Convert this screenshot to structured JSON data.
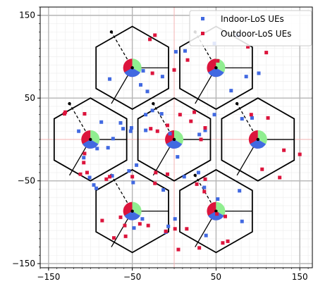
{
  "chart_data": {
    "type": "scatter",
    "title": "",
    "xlabel": "",
    "ylabel": "",
    "xlim": [
      -160,
      165
    ],
    "ylim": [
      -155,
      160
    ],
    "xticks": [
      -150,
      -50,
      50,
      150
    ],
    "yticks": [
      -150,
      -50,
      50,
      150
    ],
    "xtick_labels": [
      "−150",
      "−50",
      "50",
      "150"
    ],
    "ytick_labels": [
      "−150",
      "−50",
      "50",
      "150"
    ],
    "grid": "major + minor",
    "legend_position": "top-right",
    "hexagon_circumradius": 50,
    "cells": [
      {
        "center": [
          -50,
          86.6
        ]
      },
      {
        "center": [
          50,
          86.6
        ]
      },
      {
        "center": [
          -100,
          0
        ]
      },
      {
        "center": [
          0,
          0
        ]
      },
      {
        "center": [
          100,
          0
        ]
      },
      {
        "center": [
          -50,
          -86.6
        ]
      },
      {
        "center": [
          50,
          -86.6
        ]
      }
    ],
    "sector_colors": [
      "#dc143c",
      "#90ee90",
      "#4169e1"
    ],
    "series": [
      {
        "name": "Indoor-LoS UEs",
        "color": "#4169e1",
        "x": [
          -77,
          -32,
          -14,
          -37,
          13,
          48,
          2,
          -40,
          68,
          86,
          101,
          76,
          -64,
          -61,
          -52,
          -73,
          -51,
          -34,
          -114,
          -108,
          -92,
          -15,
          -26,
          -34,
          -5,
          -87,
          -79,
          -45,
          4,
          30,
          37,
          48,
          81,
          93,
          -74,
          -54,
          -96,
          -93,
          -101,
          -49,
          -13,
          12,
          29,
          36,
          52,
          81,
          -48,
          -38,
          -10,
          1,
          -7,
          38,
          78
        ],
        "y": [
          73,
          58,
          76,
          83,
          107,
          116,
          106,
          66,
          59,
          76,
          80,
          126,
          20,
          13,
          10,
          1,
          14,
          30,
          10,
          -22,
          -11,
          31,
          35,
          11,
          7,
          21,
          -10,
          -31,
          -21,
          6,
          11,
          30,
          25,
          26,
          -44,
          -38,
          -55,
          -59,
          -46,
          -52,
          -61,
          -45,
          -40,
          -58,
          -72,
          -99,
          -107,
          -96,
          -112,
          -96,
          -105,
          -116,
          -62
        ]
      },
      {
        "name": "Outdoor-LoS UEs",
        "color": "#dc143c",
        "x": [
          -29,
          -23,
          0,
          16,
          -26,
          52,
          88,
          110,
          92,
          -130,
          -131,
          -107,
          -107,
          -20,
          -28,
          -8,
          7,
          20,
          37,
          24,
          32,
          112,
          150,
          131,
          105,
          126,
          -108,
          -104,
          -81,
          -77,
          -50,
          -112,
          -22,
          -8,
          37,
          27,
          36,
          -64,
          -58,
          -10,
          1,
          15,
          51,
          61,
          64,
          58,
          30,
          5,
          -72,
          -41,
          -59,
          -31,
          -23,
          -86
        ],
        "y": [
          121,
          126,
          84,
          96,
          80,
          95,
          112,
          105,
          30,
          33,
          31,
          31,
          -17,
          10,
          13,
          17,
          30,
          22,
          14,
          33,
          0,
          26,
          -18,
          -13,
          -36,
          -46,
          -28,
          -40,
          -48,
          -45,
          -45,
          -42,
          -40,
          -42,
          -48,
          -54,
          -63,
          -94,
          -117,
          -111,
          -108,
          -108,
          -90,
          -93,
          -123,
          -125,
          -131,
          -133,
          -119,
          -102,
          -104,
          -104,
          -53,
          -98
        ]
      }
    ]
  }
}
